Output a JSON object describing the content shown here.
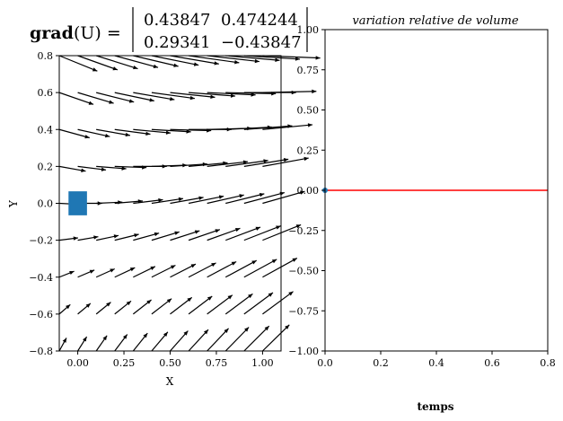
{
  "chart_data": [
    {
      "type": "quiver",
      "title_label": "grad",
      "title_arg": "(U) =",
      "matrix": [
        [
          "0.43847",
          "0.474244"
        ],
        [
          "0.29341",
          "−0.43847"
        ]
      ],
      "xlabel": "X",
      "ylabel": "Y",
      "xlim": [
        -0.1,
        1.1
      ],
      "ylim": [
        -0.8,
        0.8
      ],
      "xticks": [
        "0.00",
        "0.25",
        "0.50",
        "0.75",
        "1.00"
      ],
      "yticks": [
        "−0.8",
        "−0.6",
        "−0.4",
        "−0.2",
        "0.0",
        "0.2",
        "0.4",
        "0.6",
        "0.8"
      ],
      "xtick_values": [
        0,
        0.25,
        0.5,
        0.75,
        1.0
      ],
      "ytick_values": [
        -0.8,
        -0.6,
        -0.4,
        -0.2,
        0,
        0.2,
        0.4,
        0.6,
        0.8
      ],
      "field_gradient": [
        [
          0.43847,
          0.474244
        ],
        [
          0.29341,
          -0.43847
        ]
      ],
      "grid_x": [
        -0.1,
        0.0,
        0.1,
        0.2,
        0.3,
        0.4,
        0.5,
        0.6,
        0.7,
        0.8,
        0.9,
        1.0
      ],
      "grid_y": [
        -0.8,
        -0.6,
        -0.4,
        -0.2,
        0.0,
        0.2,
        0.4,
        0.6,
        0.8
      ],
      "square": {
        "x": 0.0,
        "y": 0.0,
        "size": 0.1,
        "color": "#1f77b4"
      },
      "arrow_color": "#000000"
    },
    {
      "type": "line",
      "title": "variation relative de volume",
      "xlabel": "temps",
      "ylabel": "",
      "xlim": [
        0,
        0.8
      ],
      "ylim": [
        -1.0,
        1.0
      ],
      "xticks": [
        "0.0",
        "0.2",
        "0.4",
        "0.6",
        "0.8"
      ],
      "yticks": [
        "−1.00",
        "−0.75",
        "−0.50",
        "−0.25",
        "0.00",
        "0.25",
        "0.50",
        "0.75",
        "1.00"
      ],
      "xtick_values": [
        0,
        0.2,
        0.4,
        0.6,
        0.8
      ],
      "ytick_values": [
        -1,
        -0.75,
        -0.5,
        -0.25,
        0,
        0.25,
        0.5,
        0.75,
        1
      ],
      "series": [
        {
          "values_x": [
            0,
            0.8
          ],
          "values_y": [
            0,
            0
          ],
          "color": "#ff0000"
        }
      ],
      "points": [
        {
          "x": 0,
          "y": 0,
          "color": "#1f77b4"
        }
      ]
    }
  ]
}
